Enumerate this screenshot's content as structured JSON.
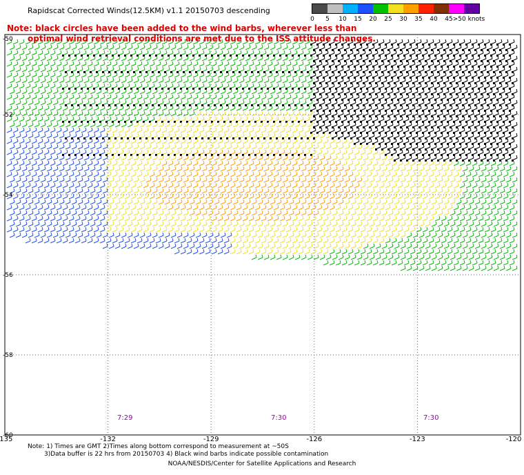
{
  "title": "Rapidscat Corrected Winds(12.5KM) v1.1 20150703 descending",
  "note": {
    "line1": "Note: black circles have been added to the wind barbs, wherever less than",
    "line2": "optimal wind retrieval conditions are met due to the ISS attitude changes."
  },
  "colorbar": {
    "labels": [
      "0",
      "5",
      "10",
      "15",
      "20",
      "25",
      "30",
      "35",
      "40",
      "45",
      ">50 knots"
    ],
    "colors": [
      "#4a4a4a",
      "#bfbfbf",
      "#00b0ff",
      "#1e50ff",
      "#00c000",
      "#f0e020",
      "#ffa000",
      "#ff2000",
      "#803000",
      "#ff00ff",
      "#6000a0"
    ]
  },
  "axes": {
    "x_ticks": [
      "-135",
      "-132",
      "-129",
      "-126",
      "-123",
      "-120"
    ],
    "y_ticks": [
      "-52",
      "-54",
      "-56",
      "-58",
      "-60"
    ],
    "y_ticks_partial": [
      "-50"
    ]
  },
  "time_labels": [
    "7:29",
    "7:30",
    "7:30"
  ],
  "bottom_note": {
    "line1": "Note: 1) Times are GMT 2)Times along bottom correspond to measurement at ~50S",
    "line2": "3)Data buffer is 22 hrs from 20150703 4) Black wind barbs indicate possible contamination"
  },
  "credit": "NOAA/NESDIS/Center for Satellite Applications and Research",
  "map_data": {
    "lon_range": [
      -135,
      -120
    ],
    "lat_range": [
      -60,
      -50
    ],
    "gridlines": "dotted",
    "swath": "wind barbs covering roughly -50 to -56.5 latitude, all longitudes"
  }
}
